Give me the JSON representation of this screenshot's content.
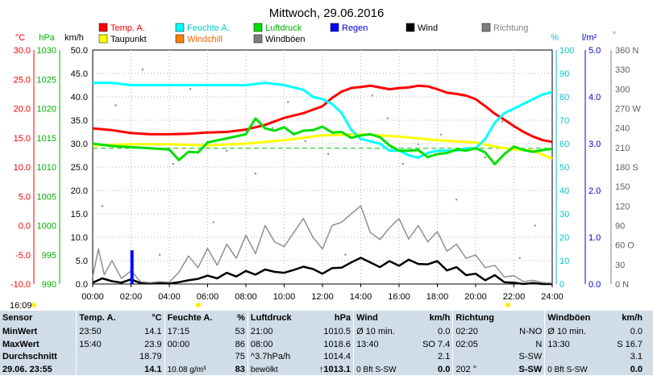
{
  "chart_data": {
    "type": "line",
    "title": "Mittwoch, 29.06.2016",
    "x_ticks": [
      "00:00",
      "02:00",
      "04:00",
      "06:00",
      "08:00",
      "10:00",
      "12:00",
      "14:00",
      "16:00",
      "18:00",
      "20:00",
      "22:00",
      "24:00"
    ],
    "x_range_hours": [
      0,
      24
    ],
    "axes": {
      "temp": {
        "unit": "°C",
        "color": "#ff0000",
        "ticks": [
          "30.0",
          "25.0",
          "20.0",
          "15.0",
          "10.0",
          "5.0",
          "0.0",
          "-5.0",
          "-10.0"
        ],
        "range": [
          -10,
          30
        ]
      },
      "pressure": {
        "unit": "hPa",
        "color": "#00b000",
        "ticks": [
          "1030",
          "1025",
          "1020",
          "1015",
          "1010",
          "1005",
          "1000",
          "995",
          "990"
        ],
        "range": [
          990,
          1030
        ]
      },
      "wind": {
        "unit": "km/h",
        "color": "#000000",
        "ticks": [
          "50.0",
          "45.0",
          "40.0",
          "35.0",
          "30.0",
          "25.0",
          "20.0",
          "15.0",
          "10.0",
          "5.0",
          "0.0"
        ],
        "range": [
          0,
          50
        ]
      },
      "humidity": {
        "unit": "%",
        "color": "#00c8c8",
        "ticks": [
          "100",
          "90",
          "80",
          "70",
          "60",
          "50",
          "40",
          "30",
          "20",
          "10",
          "0"
        ],
        "range": [
          0,
          100
        ]
      },
      "rain": {
        "unit": "l/m²",
        "color": "#0000cc",
        "ticks": [
          "5.0",
          "4.0",
          "3.0",
          "2.0",
          "1.0",
          "0.0"
        ],
        "range": [
          0,
          5
        ]
      },
      "direction": {
        "unit": "°",
        "color": "#808080",
        "ticks": [
          "360 N",
          "330",
          "300",
          "270 W",
          "240",
          "210",
          "180 S",
          "150",
          "120",
          "90",
          "60 O",
          "30",
          "0 N"
        ],
        "range": [
          0,
          360
        ]
      }
    },
    "legend": [
      {
        "name": "Temp. A.",
        "color": "#ff0000"
      },
      {
        "name": "Feuchte A.",
        "color": "#00ffff"
      },
      {
        "name": "Luftdruck",
        "color": "#00e000"
      },
      {
        "name": "Regen",
        "color": "#0000ff"
      },
      {
        "name": "Wind",
        "color": "#000000"
      },
      {
        "name": "Richtung",
        "color": "#808080"
      },
      {
        "name": "Taupunkt",
        "color": "#ffff00"
      },
      {
        "name": "Windchill",
        "color": "#ff8000"
      },
      {
        "name": "Windböen",
        "color": "#808080"
      }
    ],
    "series": [
      {
        "name": "Temp. A.",
        "axis": "temp",
        "color": "#ff0000",
        "x": [
          0,
          1,
          2,
          3,
          4,
          5,
          6,
          7,
          8,
          9,
          10,
          11,
          12,
          12.5,
          13,
          13.5,
          14,
          14.5,
          15,
          15.5,
          16,
          16.5,
          17,
          17.5,
          18,
          18.5,
          19,
          19.5,
          20,
          20.5,
          21,
          21.5,
          22,
          22.5,
          23,
          23.5,
          24
        ],
        "y": [
          16.6,
          16.3,
          15.8,
          15.6,
          15.6,
          15.7,
          15.9,
          16.0,
          16.4,
          17.2,
          18.4,
          19.2,
          20.4,
          21.8,
          22.9,
          23.5,
          23.7,
          23.9,
          23.6,
          23.3,
          23.5,
          23.6,
          23.9,
          23.8,
          23.3,
          22.7,
          22.5,
          22.2,
          21.6,
          20.4,
          19.1,
          18.1,
          17.0,
          16.0,
          15.2,
          14.6,
          14.3
        ]
      },
      {
        "name": "Taupunkt",
        "axis": "temp",
        "color": "#ffff00",
        "x": [
          0,
          2,
          4,
          6,
          8,
          10,
          12,
          14,
          16,
          18,
          20,
          21,
          22,
          23,
          24
        ],
        "y": [
          13.7,
          13.9,
          13.9,
          13.7,
          14.0,
          14.6,
          15.4,
          15.6,
          15.2,
          14.6,
          14.2,
          13.5,
          13.0,
          12.8,
          11.4
        ]
      },
      {
        "name": "Feuchte A.",
        "axis": "humidity",
        "color": "#00ffff",
        "x": [
          0,
          1,
          2,
          3,
          4,
          5,
          6,
          7,
          8,
          9,
          10,
          10.5,
          11,
          11.5,
          12,
          12.5,
          13,
          13.5,
          14,
          14.5,
          15,
          15.5,
          16,
          16.5,
          17,
          17.5,
          18,
          18.5,
          19,
          19.5,
          20,
          20.5,
          21,
          21.5,
          22,
          22.5,
          23,
          23.5,
          24
        ],
        "y": [
          86,
          86,
          85,
          85,
          85,
          85,
          85,
          85,
          85,
          86,
          85,
          84,
          83,
          80,
          79,
          77,
          73,
          66,
          62,
          61,
          60,
          57,
          57,
          55,
          54,
          56,
          57,
          57,
          57,
          58,
          58,
          62,
          69,
          73,
          75,
          77,
          79,
          81,
          82
        ]
      },
      {
        "name": "Luftdruck",
        "axis": "pressure",
        "color": "#00e000",
        "x": [
          0,
          1,
          2,
          3,
          4,
          4.5,
          5,
          5.5,
          6,
          7,
          8,
          8.5,
          9,
          9.5,
          10,
          10.5,
          11,
          11.5,
          12,
          12.5,
          13,
          13.5,
          14,
          14.5,
          15,
          15.5,
          16,
          16.5,
          17,
          17.5,
          18,
          18.5,
          19,
          19.5,
          20,
          20.5,
          21,
          21.5,
          22,
          22.5,
          23,
          23.5,
          24
        ],
        "y": [
          1014.0,
          1013.6,
          1013.4,
          1013.2,
          1013.0,
          1011.2,
          1012.6,
          1012.5,
          1014.2,
          1014.9,
          1015.6,
          1018.3,
          1016.6,
          1016.2,
          1016.8,
          1015.6,
          1016.2,
          1016.3,
          1016.9,
          1015.9,
          1016.0,
          1015.0,
          1015.4,
          1015.6,
          1015.1,
          1013.7,
          1012.8,
          1012.8,
          1012.9,
          1011.7,
          1012.2,
          1012.4,
          1013.0,
          1012.8,
          1013.2,
          1012.5,
          1010.5,
          1012.2,
          1013.5,
          1012.9,
          1012.6,
          1012.9,
          1013.1
        ]
      },
      {
        "name": "Wind",
        "axis": "wind",
        "color": "#000000",
        "x": [
          0,
          0.5,
          1,
          1.5,
          2,
          2.5,
          3,
          3.5,
          4,
          4.5,
          5,
          5.5,
          6,
          6.5,
          7,
          7.5,
          8,
          8.5,
          9,
          9.5,
          10,
          10.5,
          11,
          11.5,
          12,
          12.5,
          13,
          13.5,
          14,
          14.5,
          15,
          15.5,
          16,
          16.5,
          17,
          17.5,
          18,
          18.5,
          19,
          19.5,
          20,
          20.5,
          21,
          21.5,
          22,
          22.5,
          23,
          23.5,
          24
        ],
        "y": [
          0.3,
          1.2,
          0.6,
          0.3,
          1.0,
          0.2,
          0.1,
          0.2,
          0.1,
          0.4,
          0.8,
          1.1,
          1.8,
          1.2,
          2.4,
          1.6,
          2.8,
          2.0,
          3.1,
          2.6,
          2.4,
          3.0,
          3.7,
          3.2,
          2.2,
          3.4,
          3.5,
          4.6,
          5.6,
          4.6,
          3.6,
          4.9,
          3.9,
          5.2,
          4.3,
          4.2,
          4.9,
          2.9,
          3.6,
          1.9,
          2.2,
          0.8,
          1.9,
          0.4,
          0.3,
          0.0,
          0.2,
          0.0,
          0.0
        ]
      },
      {
        "name": "Windböen",
        "axis": "wind",
        "color": "#909090",
        "x": [
          0,
          0.3,
          0.6,
          1,
          1.5,
          2,
          2.5,
          3,
          3.5,
          4,
          4.5,
          5,
          5.5,
          6,
          6.5,
          7,
          7.5,
          8,
          8.5,
          9,
          9.5,
          10,
          10.5,
          11,
          11.5,
          12,
          12.5,
          13,
          13.5,
          14,
          14.5,
          15,
          15.5,
          16,
          16.5,
          17,
          17.5,
          18,
          18.5,
          19,
          19.5,
          20,
          20.5,
          21,
          21.5,
          22,
          22.5,
          23,
          23.5,
          24
        ],
        "y": [
          1.5,
          7.5,
          2.0,
          5.0,
          1.2,
          2.8,
          0.5,
          0.3,
          0.5,
          0.4,
          2.5,
          6.0,
          3.5,
          7.6,
          4.0,
          8.5,
          5.5,
          10.4,
          6.5,
          12.5,
          9.0,
          8.0,
          11.0,
          14.0,
          10.0,
          7.5,
          12.5,
          13.2,
          15.0,
          16.7,
          11.0,
          9.5,
          12.0,
          14.0,
          9.6,
          12.5,
          9.0,
          11.2,
          7.0,
          8.5,
          5.5,
          6.2,
          3.5,
          4.0,
          1.5,
          1.8,
          0.5,
          0.8,
          0.3,
          0.2
        ]
      },
      {
        "name": "Regen",
        "axis": "rain",
        "color": "#0000ff",
        "x": [
          2.05
        ],
        "y": [
          0.72
        ]
      },
      {
        "name": "Richtung",
        "axis": "direction",
        "color": "#808080",
        "type": "scatter",
        "x": [
          0.5,
          1.2,
          2.6,
          3.5,
          4.2,
          5.1,
          6.3,
          7.0,
          8.5,
          9.4,
          10.2,
          11.1,
          12.3,
          13.2,
          14.6,
          15.4,
          16.2,
          17.0,
          18.2,
          19.0,
          20.5,
          21.4,
          22.3,
          23.1
        ],
        "y": [
          120,
          275,
          330,
          45,
          185,
          300,
          95,
          205,
          170,
          240,
          280,
          220,
          200,
          45,
          290,
          255,
          185,
          215,
          230,
          130,
          195,
          250,
          40,
          90
        ]
      }
    ],
    "reference_line": {
      "axis": "wind",
      "value": 29.0,
      "color": "#00c000",
      "style": "dashed"
    },
    "markers": {
      "time_left": "16:09"
    },
    "grid": true
  },
  "table": {
    "headers": {
      "sensor": "Sensor",
      "temp": "Temp. A.",
      "temp_unit": "°C",
      "hum": "Feuchte A.",
      "hum_unit": "%",
      "press": "Luftdruck",
      "press_unit": "hPa",
      "wind": "Wind",
      "wind_unit": "km/h",
      "dir": "Richtung",
      "gust": "Windböen",
      "gust_unit": "km/h"
    },
    "rows": [
      {
        "label": "MinWert",
        "t_time": "23:50",
        "t_val": "14.1",
        "h_time": "17:15",
        "h_val": "53",
        "p_time": "21:00",
        "p_val": "1010.5",
        "w_time": "Ø 10 min.",
        "w_val": "0.0",
        "d_time": "02:20",
        "d_val": "N-NO",
        "g_time": "Ø 10 min.",
        "g_val": "0.0"
      },
      {
        "label": "MaxWert",
        "t_time": "15:40",
        "t_val": "23.9",
        "h_time": "00:00",
        "h_val": "86",
        "p_time": "08:00",
        "p_val": "1018.6",
        "w_time": "13:40",
        "w_val": "SO 7.4",
        "d_time": "02:05",
        "d_val": "N",
        "g_time": "13:30",
        "g_val": "S 16.7"
      },
      {
        "label": "Durchschnitt",
        "t_time": "",
        "t_val": "18.79",
        "h_time": "",
        "h_val": "75",
        "p_time": "^3.7hPa/h",
        "p_val": "1014.4",
        "w_time": "",
        "w_val": "2.1",
        "d_time": "",
        "d_val": "S-SW",
        "g_time": "",
        "g_val": "3.1"
      },
      {
        "label": "29.06. 23:55",
        "t_time": "",
        "t_val": "14.1",
        "h_time": "10.08 g/m³",
        "h_val": "83",
        "p_time": "bewölkt",
        "p_val": "↑1013.1",
        "w_time": "0 Bft S-SW",
        "w_val": "0.0",
        "d_time": "202 °",
        "d_val": "S-SW",
        "g_time": "0 Bft S-SW",
        "g_val": "0.0"
      }
    ]
  }
}
